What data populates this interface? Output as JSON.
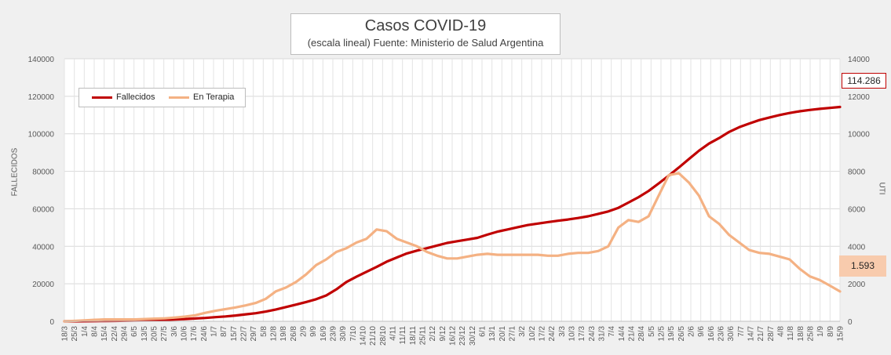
{
  "chart_data": {
    "type": "line",
    "title": "Casos COVID-19",
    "subtitle": "(escala lineal) Fuente: Ministerio de Salud Argentina",
    "ylabel": "FALLECIDOS",
    "y2label": "UTI",
    "ylim": [
      0,
      140000
    ],
    "y2lim": [
      0,
      14000
    ],
    "y_ticks": [
      "0",
      "20000",
      "40000",
      "60000",
      "80000",
      "100000",
      "120000",
      "140000"
    ],
    "y2_ticks": [
      "0",
      "2000",
      "4000",
      "6000",
      "8000",
      "10000",
      "12000",
      "14000"
    ],
    "x_ticks": [
      "18/3",
      "25/3",
      "1/4",
      "8/4",
      "15/4",
      "22/4",
      "29/4",
      "6/5",
      "13/5",
      "20/5",
      "27/5",
      "3/6",
      "10/6",
      "17/6",
      "24/6",
      "1/7",
      "8/7",
      "15/7",
      "22/7",
      "29/7",
      "5/8",
      "12/8",
      "19/8",
      "26/8",
      "2/9",
      "9/9",
      "16/9",
      "23/9",
      "30/9",
      "7/10",
      "14/10",
      "21/10",
      "28/10",
      "4/11",
      "11/11",
      "18/11",
      "25/11",
      "2/12",
      "9/12",
      "16/12",
      "23/12",
      "30/12",
      "6/1",
      "13/1",
      "20/1",
      "27/1",
      "3/2",
      "10/2",
      "17/2",
      "24/2",
      "3/3",
      "10/3",
      "17/3",
      "24/3",
      "31/3",
      "7/4",
      "14/4",
      "21/4",
      "28/4",
      "5/5",
      "12/5",
      "19/5",
      "26/5",
      "2/6",
      "9/6",
      "16/6",
      "23/6",
      "30/6",
      "7/7",
      "14/7",
      "21/7",
      "28/7",
      "4/8",
      "11/8",
      "18/8",
      "25/8",
      "1/9",
      "8/9",
      "15/9"
    ],
    "grid": true,
    "legend": "top-left",
    "series": [
      {
        "name": "Fallecidos",
        "axis": "left",
        "color": "#c00000",
        "values": [
          0,
          20,
          50,
          100,
          150,
          200,
          300,
          400,
          500,
          600,
          800,
          1000,
          1200,
          1500,
          1800,
          2200,
          2600,
          3100,
          3700,
          4300,
          5200,
          6300,
          7600,
          8900,
          10300,
          11800,
          13800,
          17000,
          21000,
          23800,
          26400,
          29000,
          31800,
          34000,
          36200,
          37700,
          39000,
          40400,
          41800,
          42700,
          43600,
          44500,
          46200,
          47800,
          49000,
          50200,
          51300,
          52100,
          52900,
          53600,
          54300,
          55100,
          56000,
          57300,
          58600,
          60500,
          63300,
          66200,
          69500,
          73500,
          77700,
          82000,
          86500,
          91000,
          94800,
          97700,
          101000,
          103500,
          105500,
          107300,
          108700,
          110000,
          111100,
          112000,
          112700,
          113300,
          113800,
          114286
        ]
      },
      {
        "name": "En Terapia",
        "axis": "right",
        "color": "#f4b183",
        "values": [
          0,
          20,
          50,
          80,
          100,
          100,
          100,
          100,
          120,
          140,
          160,
          200,
          250,
          320,
          450,
          560,
          650,
          740,
          850,
          980,
          1200,
          1600,
          1800,
          2100,
          2500,
          3000,
          3300,
          3700,
          3900,
          4200,
          4400,
          4900,
          4800,
          4400,
          4200,
          4000,
          3700,
          3500,
          3350,
          3350,
          3450,
          3550,
          3600,
          3550,
          3550,
          3550,
          3550,
          3550,
          3500,
          3500,
          3600,
          3650,
          3650,
          3750,
          4000,
          5000,
          5400,
          5300,
          5600,
          6700,
          7800,
          7900,
          7400,
          6700,
          5600,
          5200,
          4600,
          4200,
          3800,
          3650,
          3600,
          3450,
          3300,
          2800,
          2400,
          2200,
          1900,
          1593
        ]
      }
    ]
  },
  "callouts": {
    "fallecidos_last": "114.286",
    "terapia_last": "1.593"
  }
}
